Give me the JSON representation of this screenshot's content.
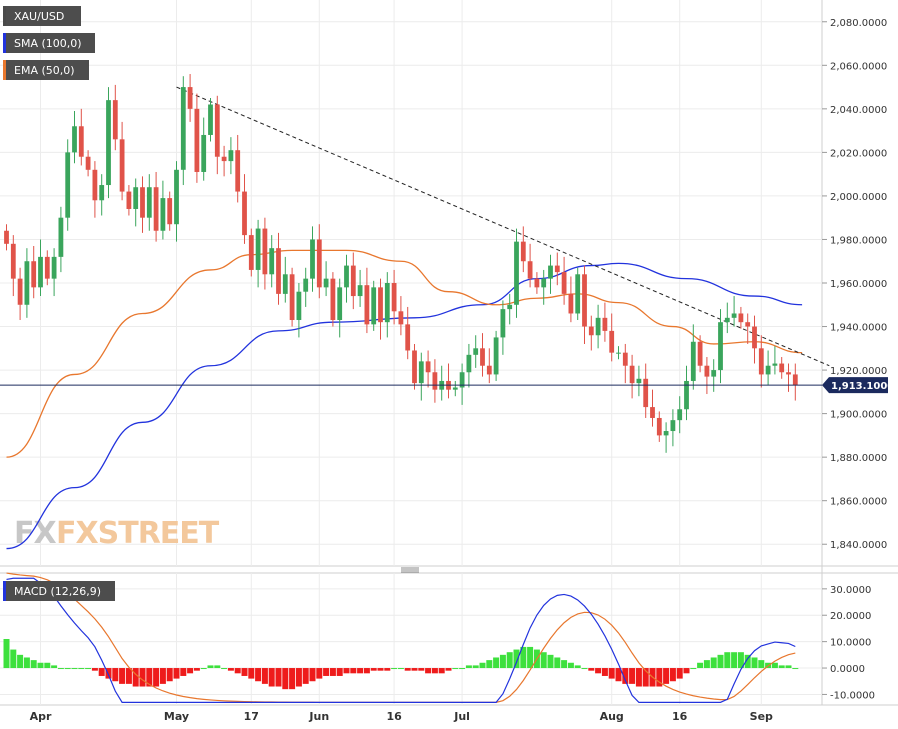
{
  "chart_data": [
    {
      "type": "candlestick",
      "symbol": "XAU/USD",
      "legend": [
        {
          "label": "XAU/USD",
          "color": "#4a4a4a"
        },
        {
          "label": "SMA (100,0)",
          "color": "#2233dd"
        },
        {
          "label": "EMA (50,0)",
          "color": "#e8772e"
        }
      ],
      "price_tag": "1,913.1000",
      "current_price": 1913.1,
      "ylim": [
        1830,
        2090
      ],
      "yticks": [
        2080,
        2060,
        2040,
        2020,
        2000,
        1980,
        1960,
        1940,
        1920,
        1900,
        1880,
        1860,
        1840
      ],
      "ytick_labels": [
        "2,080.0000",
        "2,060.0000",
        "2,040.0000",
        "2,020.0000",
        "2,000.0000",
        "1,980.0000",
        "1,960.0000",
        "1,940.0000",
        "1,920.0000",
        "1,900.0000",
        "1,880.0000",
        "1,860.0000",
        "1,840.0000"
      ],
      "x_tick_labels": [
        {
          "label": "Apr",
          "bar": 5
        },
        {
          "label": "May",
          "bar": 25
        },
        {
          "label": "17",
          "bar": 36
        },
        {
          "label": "Jun",
          "bar": 46
        },
        {
          "label": "16",
          "bar": 57
        },
        {
          "label": "Jul",
          "bar": 67
        },
        {
          "label": "Aug",
          "bar": 89
        },
        {
          "label": "16",
          "bar": 99
        },
        {
          "label": "Sep",
          "bar": 111
        }
      ],
      "closes": [
        1978,
        1962,
        1950,
        1970,
        1958,
        1972,
        1962,
        1972,
        1990,
        2020,
        2032,
        2018,
        2012,
        1998,
        2005,
        2044,
        2026,
        2002,
        1994,
        2004,
        1990,
        2004,
        1984,
        1999,
        1987,
        2012,
        2050,
        2040,
        2011,
        2028,
        2042,
        2018,
        2016,
        2021,
        2002,
        1982,
        1966,
        1985,
        1964,
        1976,
        1955,
        1964,
        1943,
        1956,
        1962,
        1980,
        1958,
        1962,
        1943,
        1958,
        1968,
        1954,
        1959,
        1941,
        1958,
        1942,
        1960,
        1947,
        1941,
        1929,
        1914,
        1924,
        1919,
        1911,
        1915,
        1911,
        1912,
        1919,
        1927,
        1930,
        1922,
        1918,
        1935,
        1948,
        1950,
        1979,
        1970,
        1962,
        1958,
        1962,
        1968,
        1965,
        1955,
        1946,
        1964,
        1940,
        1936,
        1944,
        1938,
        1928,
        1928,
        1922,
        1914,
        1916,
        1903,
        1898,
        1890,
        1892,
        1897,
        1902,
        1915,
        1933,
        1922,
        1917,
        1920,
        1942,
        1944,
        1946,
        1942,
        1940,
        1930,
        1918,
        1922,
        1923,
        1919,
        1918,
        1913
      ],
      "sma_100": [
        [
          0,
          1838
        ],
        [
          10,
          1866
        ],
        [
          20,
          1896
        ],
        [
          30,
          1922
        ],
        [
          40,
          1938
        ],
        [
          48,
          1942
        ],
        [
          60,
          1944
        ],
        [
          70,
          1950
        ],
        [
          78,
          1962
        ],
        [
          86,
          1968
        ],
        [
          90,
          1969
        ],
        [
          100,
          1962
        ],
        [
          110,
          1954
        ],
        [
          117,
          1950
        ]
      ],
      "ema_50": [
        [
          0,
          1880
        ],
        [
          10,
          1918
        ],
        [
          20,
          1946
        ],
        [
          30,
          1966
        ],
        [
          36,
          1973
        ],
        [
          42,
          1975
        ],
        [
          50,
          1975
        ],
        [
          58,
          1970
        ],
        [
          65,
          1956
        ],
        [
          72,
          1950
        ],
        [
          78,
          1953
        ],
        [
          84,
          1955
        ],
        [
          90,
          1951
        ],
        [
          98,
          1940
        ],
        [
          104,
          1932
        ],
        [
          110,
          1933
        ],
        [
          117,
          1928
        ]
      ],
      "trendline": [
        [
          25,
          2050
        ],
        [
          121,
          1922
        ]
      ]
    },
    {
      "type": "macd",
      "legend": "MACD (12,26,9)",
      "ylim": [
        -14,
        36
      ],
      "yticks": [
        30,
        20,
        10,
        0,
        -10
      ],
      "ytick_labels": [
        "30.0000",
        "20.0000",
        "10.0000",
        "0.0000",
        "-10.0000"
      ],
      "histogram": [
        11,
        7,
        5,
        4,
        3,
        2,
        2,
        1,
        0,
        0,
        0,
        0,
        0,
        -1,
        -3,
        -4,
        -5,
        -6,
        -6,
        -7,
        -7,
        -7,
        -7,
        -6,
        -5,
        -4,
        -3,
        -2,
        -1,
        0,
        1,
        1,
        0,
        -1,
        -2,
        -3,
        -4,
        -5,
        -6,
        -7,
        -7,
        -8,
        -8,
        -7,
        -6,
        -5,
        -4,
        -3,
        -3,
        -3,
        -2,
        -2,
        -2,
        -2,
        -1,
        -1,
        -1,
        0,
        0,
        -1,
        -1,
        -1,
        -2,
        -2,
        -2,
        -1,
        0,
        0,
        1,
        1,
        2,
        3,
        4,
        5,
        6,
        7,
        8,
        8,
        7,
        6,
        5,
        4,
        3,
        2,
        1,
        0,
        -1,
        -2,
        -3,
        -4,
        -5,
        -6,
        -6,
        -7,
        -7,
        -7,
        -7,
        -6,
        -5,
        -4,
        -2,
        0,
        2,
        3,
        4,
        5,
        6,
        6,
        6,
        5,
        4,
        3,
        2,
        2,
        1,
        1,
        0
      ]
    }
  ],
  "watermark": "FXSTREET"
}
